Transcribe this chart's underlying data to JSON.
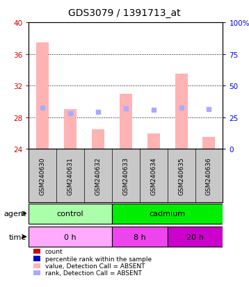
{
  "title": "GDS3079 / 1391713_at",
  "samples": [
    "GSM240630",
    "GSM240631",
    "GSM240632",
    "GSM240633",
    "GSM240634",
    "GSM240635",
    "GSM240636"
  ],
  "bar_values": [
    37.5,
    29.0,
    26.5,
    31.0,
    26.0,
    33.5,
    25.5
  ],
  "bar_bottom": 24.0,
  "rank_values": [
    29.2,
    28.5,
    28.7,
    29.1,
    28.9,
    29.2,
    29.0
  ],
  "ylim": [
    24,
    40
  ],
  "yticks_left": [
    24,
    28,
    32,
    36,
    40
  ],
  "yticks_right": [
    0,
    25,
    50,
    75,
    100
  ],
  "yright_labels": [
    "0",
    "25",
    "50",
    "75",
    "100%"
  ],
  "bar_color": "#ffb3b3",
  "rank_color": "#aaaaff",
  "agent_colors": [
    "#aaffaa",
    "#00ee00"
  ],
  "time_colors": [
    "#ffaaff",
    "#ee44ee",
    "#cc00cc"
  ],
  "legend_items": [
    {
      "label": "count",
      "color": "#cc0000"
    },
    {
      "label": "percentile rank within the sample",
      "color": "#0000cc"
    },
    {
      "label": "value, Detection Call = ABSENT",
      "color": "#ffb3b3"
    },
    {
      "label": "rank, Detection Call = ABSENT",
      "color": "#aaaaff"
    }
  ],
  "left_axis_color": "#cc0000",
  "right_axis_color": "#0000cc",
  "sample_bg": "#c8c8c8"
}
